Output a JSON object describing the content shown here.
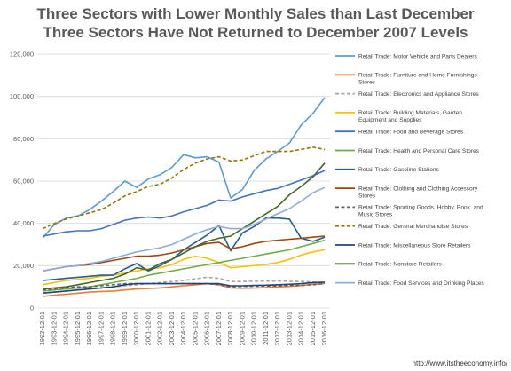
{
  "chart_data": {
    "type": "line",
    "title": "Three Sectors with Lower Monthly Sales than Last December",
    "subtitle": "Three Sectors Have Not Returned to December 2007 Levels",
    "xlabel": "",
    "ylabel": "",
    "ylim": [
      0,
      120000
    ],
    "yticks": [
      "0",
      "20,000",
      "40,000",
      "60,000",
      "80,000",
      "100,000",
      "120,000"
    ],
    "grid": true,
    "legend_position": "right",
    "x": [
      "1992-12-01",
      "1993-12-01",
      "1994-12-01",
      "1995-12-01",
      "1996-12-01",
      "1997-12-01",
      "1998-12-01",
      "1999-12-01",
      "2000-12-01",
      "2001-12-01",
      "2002-12-01",
      "2003-12-01",
      "2004-12-01",
      "2005-12-01",
      "2006-12-01",
      "2007-12-01",
      "2008-12-01",
      "2009-12-01",
      "2010-12-01",
      "2011-12-01",
      "2012-12-01",
      "2013-12-01",
      "2014-12-01",
      "2015-12-01",
      "2016-12-01"
    ],
    "series": [
      {
        "name": "Retail Trade: Motor Vehicle and Parts Dealers",
        "color": "#5b9bd5",
        "dash": "solid",
        "values": [
          33000,
          39500,
          42500,
          43500,
          46500,
          50500,
          55000,
          60000,
          57000,
          61000,
          63000,
          66500,
          72500,
          71000,
          71500,
          69000,
          52000,
          56000,
          65000,
          70500,
          74000,
          78000,
          86500,
          92000,
          99500
        ]
      },
      {
        "name": "Retail Trade: Furniture and Home Furnishings Stores",
        "color": "#ed7d31",
        "dash": "solid",
        "values": [
          5500,
          6000,
          6500,
          7000,
          7500,
          7800,
          8000,
          8500,
          9000,
          9200,
          9500,
          10000,
          10500,
          11000,
          11500,
          11000,
          9500,
          9300,
          9400,
          9700,
          10000,
          10200,
          10600,
          11200,
          11600
        ]
      },
      {
        "name": "Retail Trade: Electronics and Appliance Stores",
        "color": "#a5a5a5",
        "dash": "dashed",
        "values": [
          7000,
          7500,
          8000,
          8500,
          9000,
          9500,
          10000,
          10500,
          11000,
          11500,
          12000,
          12500,
          13000,
          13800,
          14500,
          14000,
          12500,
          12500,
          12700,
          12700,
          12800,
          12600,
          12500,
          12300,
          12000
        ]
      },
      {
        "name": "Retail Trade: Building Materials, Garden Equipment and Supplies",
        "color": "#ffc000",
        "dash": "solid",
        "values": [
          11000,
          12000,
          13000,
          13500,
          14000,
          15000,
          15500,
          16500,
          17500,
          18500,
          19000,
          20500,
          23000,
          24500,
          23500,
          21500,
          19000,
          19500,
          20000,
          20500,
          21500,
          23000,
          25000,
          26500,
          27500
        ]
      },
      {
        "name": "Retail Trade: Food and Beverage Stores",
        "color": "#4472c4",
        "dash": "solid",
        "values": [
          34000,
          35000,
          36000,
          36500,
          36500,
          37500,
          39500,
          41500,
          42500,
          43000,
          42500,
          43500,
          45500,
          47000,
          48500,
          51000,
          50500,
          52500,
          54000,
          55500,
          56500,
          58500,
          60500,
          62500,
          65000
        ]
      },
      {
        "name": "Retail Trade: Health and Personal Care Stores",
        "color": "#70ad47",
        "dash": "solid",
        "values": [
          8000,
          8500,
          9000,
          9500,
          10000,
          11000,
          12000,
          13000,
          14000,
          15500,
          16500,
          17500,
          18500,
          19500,
          20500,
          21500,
          22500,
          23500,
          24500,
          25500,
          26500,
          27500,
          29000,
          30500,
          32000
        ]
      },
      {
        "name": "Retail Trade: Gasoline Stations",
        "color": "#255e91",
        "dash": "solid",
        "values": [
          13000,
          13500,
          14000,
          14500,
          15000,
          15500,
          15500,
          18500,
          21000,
          17500,
          20000,
          23000,
          27500,
          31000,
          34500,
          39000,
          27000,
          35500,
          38500,
          42500,
          42500,
          42000,
          33000,
          31500,
          33500
        ]
      },
      {
        "name": "Retail Trade: Clothing and Clothing Accessory Stores",
        "color": "#9e480e",
        "dash": "solid",
        "values": [
          17500,
          18500,
          19500,
          20000,
          20500,
          21500,
          22500,
          23500,
          24500,
          24500,
          25000,
          26000,
          27500,
          29000,
          30500,
          31000,
          28000,
          29000,
          30500,
          31500,
          32000,
          32500,
          33000,
          33500,
          34000
        ]
      },
      {
        "name": "Retail Trade: Sporting Goods, Hobby, Book, and Music Stores",
        "color": "#636363",
        "dash": "dashed",
        "values": [
          8500,
          9000,
          9500,
          10000,
          10000,
          10500,
          11000,
          11500,
          11500,
          11500,
          11500,
          11500,
          11500,
          11500,
          11500,
          11000,
          10000,
          10200,
          10300,
          10400,
          10500,
          10600,
          10700,
          11000,
          11500
        ]
      },
      {
        "name": "Retail Trade: General Merchandise Stores",
        "color": "#997300",
        "dash": "dashed",
        "values": [
          37500,
          40000,
          42000,
          43500,
          45000,
          46500,
          49500,
          53000,
          55000,
          57500,
          58500,
          61500,
          65500,
          68500,
          70500,
          71500,
          69500,
          70000,
          72000,
          74000,
          74000,
          74000,
          75000,
          76000,
          75000
        ]
      },
      {
        "name": "Retail Trade: Miscellaneous Store Retailers",
        "color": "#264478",
        "dash": "solid",
        "values": [
          7000,
          7500,
          8000,
          8500,
          9000,
          9500,
          10000,
          11000,
          11500,
          11500,
          11500,
          11500,
          11500,
          11500,
          11500,
          11500,
          10500,
          10500,
          10700,
          10800,
          11000,
          11200,
          11500,
          12000,
          12200
        ]
      },
      {
        "name": "Retail Trade: Nonstore Retailers",
        "color": "#43682b",
        "dash": "solid",
        "values": [
          9000,
          9500,
          10000,
          11000,
          12000,
          13000,
          14000,
          16000,
          19000,
          18000,
          21000,
          23000,
          26000,
          29000,
          31500,
          33000,
          34000,
          37500,
          41000,
          44500,
          48000,
          53500,
          57500,
          62000,
          68500
        ]
      },
      {
        "name": "Retail Trade: Food Services and Drinking Places",
        "color": "#8faadc",
        "dash": "solid",
        "values": [
          17500,
          18500,
          19500,
          20000,
          21000,
          22000,
          23500,
          25000,
          26500,
          27500,
          28500,
          30000,
          32500,
          35000,
          37000,
          38500,
          37500,
          37500,
          39500,
          42000,
          44500,
          47000,
          50500,
          54500,
          57000
        ]
      }
    ]
  },
  "source": "http://www.itstheeconomy.info/"
}
